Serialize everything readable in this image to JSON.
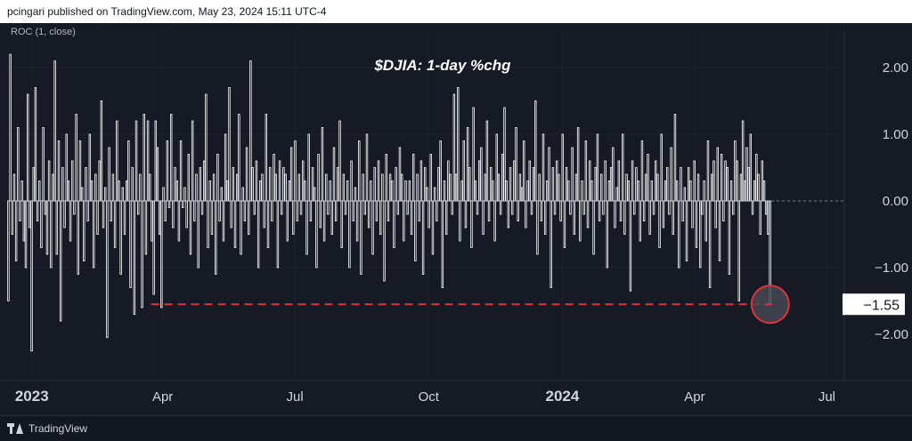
{
  "header": {
    "published_by": "pcingari published on TradingView.com, May 23, 2024 15:11 UTC-4"
  },
  "indicator": {
    "label": "ROC (1, close)"
  },
  "footer": {
    "brand": "TradingView"
  },
  "colors": {
    "background": "#161a25",
    "bar": "#ffffff",
    "zero_line": "#787b86",
    "highlight": "#e0313c",
    "highlight_fill": "#454852",
    "grid": "#1f2330",
    "axis_text": "#d1d4dc"
  },
  "chart_data": {
    "type": "bar",
    "title": "$DJIA: 1-day %chg",
    "ylabel": "",
    "xlabel": "",
    "ylim": [
      -2.5,
      2.7
    ],
    "y_ticks": [
      {
        "value": 2.0,
        "label": "2.00"
      },
      {
        "value": 1.0,
        "label": "1.00"
      },
      {
        "value": 0.0,
        "label": "0.00"
      },
      {
        "value": -1.0,
        "label": "−1.00"
      },
      {
        "value": -2.0,
        "label": "−2.00"
      }
    ],
    "x_ticks": [
      {
        "date": "2023-01-01",
        "label": "2023",
        "bold": true
      },
      {
        "date": "2023-04-01",
        "label": "Apr",
        "bold": false
      },
      {
        "date": "2023-07-01",
        "label": "Jul",
        "bold": false
      },
      {
        "date": "2023-10-01",
        "label": "Oct",
        "bold": false
      },
      {
        "date": "2024-01-01",
        "label": "2024",
        "bold": true
      },
      {
        "date": "2024-04-01",
        "label": "Apr",
        "bold": false
      },
      {
        "date": "2024-07-01",
        "label": "Jul",
        "bold": false
      }
    ],
    "x_range": [
      "2022-12-15",
      "2024-07-13"
    ],
    "series": [
      {
        "start_date": "2022-12-16",
        "last_date": "2024-05-23",
        "values": [
          -1.5,
          2.2,
          -0.5,
          0.4,
          -0.9,
          1.1,
          -0.3,
          0.3,
          -0.6,
          -1.0,
          1.6,
          -0.4,
          -2.25,
          0.5,
          1.7,
          -0.3,
          0.3,
          -0.7,
          1.1,
          -0.2,
          -0.8,
          0.6,
          -1.0,
          0.4,
          2.1,
          -0.8,
          0.9,
          -1.8,
          0.5,
          -0.4,
          1.0,
          0.3,
          -0.6,
          0.6,
          -0.2,
          1.3,
          -1.1,
          0.9,
          0.2,
          -0.9,
          0.5,
          -0.3,
          1.0,
          0.3,
          -1.0,
          0.4,
          -0.5,
          0.6,
          1.5,
          -0.4,
          0.2,
          -2.05,
          0.8,
          -0.3,
          0.4,
          -0.7,
          1.2,
          0.3,
          -1.1,
          0.2,
          -0.5,
          0.3,
          0.9,
          -1.3,
          0.5,
          -1.7,
          1.2,
          -0.2,
          0.4,
          -1.6,
          1.3,
          -0.8,
          1.2,
          0.4,
          -0.6,
          -1.4,
          1.2,
          0.8,
          -0.5,
          -1.6,
          0.2,
          -0.3,
          0.9,
          -0.1,
          1.3,
          -0.4,
          0.5,
          0.3,
          -0.6,
          0.9,
          -0.1,
          0.2,
          -0.4,
          0.7,
          -0.8,
          1.2,
          -0.3,
          0.4,
          -1.0,
          0.5,
          -0.2,
          0.6,
          1.6,
          -0.7,
          0.3,
          -0.5,
          0.4,
          -1.1,
          0.7,
          -0.3,
          0.2,
          -0.6,
          1.0,
          0.3,
          1.7,
          -0.4,
          0.5,
          -0.7,
          0.4,
          1.3,
          -0.8,
          0.2,
          -0.3,
          0.8,
          -0.5,
          2.1,
          0.5,
          -0.2,
          0.6,
          -1.0,
          0.3,
          0.4,
          -0.4,
          1.3,
          -0.7,
          0.5,
          -0.3,
          0.7,
          0.4,
          -1.0,
          0.6,
          -0.2,
          0.5,
          0.4,
          -0.6,
          0.3,
          0.8,
          -0.5,
          0.9,
          -0.3,
          0.4,
          -0.2,
          0.6,
          0.3,
          -0.8,
          1.0,
          -0.3,
          0.5,
          0.2,
          -1.0,
          0.7,
          -0.4,
          1.1,
          -0.6,
          0.4,
          -0.2,
          0.3,
          -0.5,
          0.8,
          -0.3,
          0.5,
          1.2,
          -0.7,
          0.4,
          -0.2,
          0.3,
          -1.0,
          0.6,
          -0.3,
          0.2,
          -0.6,
          0.9,
          -1.1,
          0.4,
          -0.2,
          1.0,
          -0.4,
          0.3,
          -0.8,
          0.5,
          -0.3,
          0.6,
          -0.5,
          0.4,
          -1.2,
          0.7,
          -0.3,
          0.4,
          0.3,
          -0.7,
          0.5,
          -0.2,
          0.8,
          0.4,
          -0.6,
          0.3,
          -0.2,
          0.3,
          -0.5,
          0.7,
          -0.9,
          0.4,
          -0.3,
          0.6,
          -1.1,
          0.5,
          0.2,
          -0.4,
          0.7,
          -0.8,
          0.2,
          -0.3,
          0.5,
          0.9,
          -1.3,
          0.3,
          -0.5,
          0.6,
          0.4,
          -0.2,
          1.6,
          0.4,
          1.7,
          -0.6,
          0.3,
          0.9,
          -0.4,
          1.1,
          0.5,
          -0.7,
          1.4,
          0.3,
          -0.2,
          0.6,
          0.8,
          -0.5,
          0.4,
          1.2,
          -0.3,
          0.5,
          0.3,
          -0.6,
          1.0,
          0.4,
          -0.2,
          0.7,
          1.4,
          0.3,
          -0.4,
          0.5,
          -0.2,
          0.6,
          1.1,
          -0.3,
          0.4,
          0.2,
          0.9,
          -0.4,
          0.3,
          0.6,
          -0.2,
          0.5,
          1.5,
          -0.8,
          0.4,
          -0.3,
          1.0,
          -0.5,
          0.3,
          0.8,
          -1.3,
          0.5,
          -0.2,
          0.6,
          0.4,
          -0.3,
          1.0,
          -0.7,
          0.5,
          0.3,
          -0.2,
          0.8,
          -0.5,
          0.4,
          1.1,
          -0.6,
          0.3,
          -0.2,
          0.9,
          -0.4,
          0.6,
          0.3,
          -0.8,
          0.5,
          1.0,
          -0.3,
          0.4,
          -0.2,
          0.6,
          -1.0,
          0.3,
          0.5,
          0.8,
          -0.4,
          0.2,
          0.6,
          -0.3,
          1.0,
          -0.5,
          0.4,
          0.3,
          -1.35,
          0.6,
          -0.2,
          0.5,
          0.3,
          -0.6,
          0.9,
          -0.3,
          0.4,
          0.7,
          -0.5,
          0.3,
          -0.2,
          0.6,
          0.4,
          -0.7,
          1.0,
          -0.4,
          0.3,
          0.5,
          -0.2,
          0.8,
          -0.5,
          1.3,
          0.3,
          -1.0,
          0.5,
          -0.3,
          0.2,
          -0.9,
          0.5,
          0.3,
          -0.4,
          0.6,
          -0.7,
          0.4,
          -1.0,
          -0.2,
          0.3,
          -0.6,
          0.9,
          -1.3,
          0.4,
          0.6,
          -0.4,
          0.8,
          -0.9,
          0.7,
          -0.3,
          0.6,
          0.5,
          -1.1,
          0.3,
          -0.2,
          0.9,
          0.6,
          -1.5,
          0.4,
          1.2,
          0.3,
          0.8,
          0.5,
          1.0,
          -0.2,
          0.3,
          0.7,
          0.4,
          -0.5,
          0.6,
          0.3,
          -0.2,
          -0.5,
          -1.55
        ]
      }
    ],
    "highlight": {
      "date": "2024-05-23",
      "value": -1.55,
      "label": "−1.55",
      "reference_line_from": "2023-03-24"
    }
  }
}
